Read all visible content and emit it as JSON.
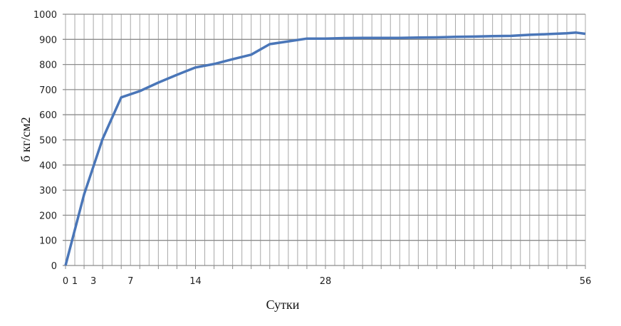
{
  "chart_data": {
    "type": "line",
    "title": "",
    "xlabel": "Сутки",
    "ylabel": "б кг/см2",
    "xlim": [
      0,
      56
    ],
    "ylim": [
      0,
      1000
    ],
    "grid": true,
    "x_tick_labels": [
      "0",
      "1",
      "3",
      "7",
      "14",
      "28",
      "56"
    ],
    "x_tick_values": [
      0,
      1,
      3,
      7,
      14,
      28,
      56
    ],
    "y_tick_labels": [
      "0",
      "100",
      "200",
      "300",
      "400",
      "500",
      "600",
      "700",
      "800",
      "900",
      "1000"
    ],
    "line_color": "#4a76b8",
    "series": [
      {
        "x": [
          0,
          2,
          4,
          6,
          8,
          10,
          12,
          14,
          16,
          18,
          20,
          22,
          24,
          26,
          28,
          30,
          32,
          34,
          36,
          38,
          40,
          42,
          44,
          46,
          48,
          50,
          52,
          54,
          55,
          56
        ],
        "values": [
          0,
          283,
          504,
          669,
          694,
          728,
          759,
          788,
          802,
          821,
          839,
          881,
          892,
          903,
          903,
          905,
          906,
          906,
          906,
          907,
          908,
          910,
          911,
          913,
          914,
          918,
          921,
          924,
          927,
          922
        ]
      }
    ]
  }
}
